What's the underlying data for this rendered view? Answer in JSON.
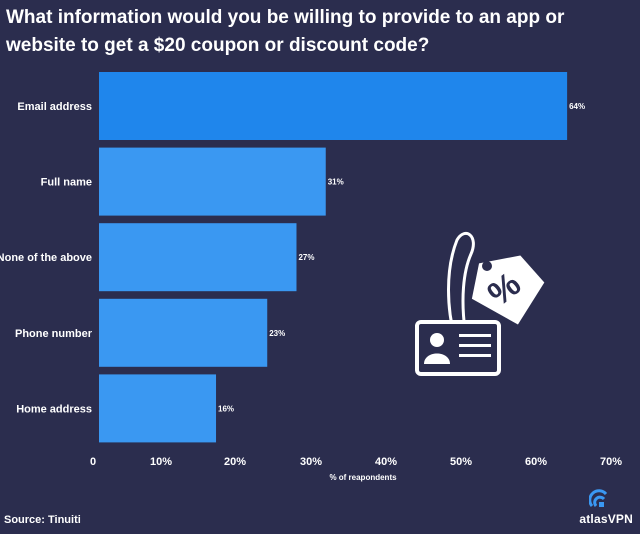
{
  "title": "What information would you be willing to provide to an app or website to get a $20 coupon or discount code?",
  "source": "Source: Tinuiti",
  "brand": {
    "name": "atlasVPN",
    "icon": "atlas-vpn-logo-icon"
  },
  "illustration": {
    "icons": [
      "discount-tag-icon",
      "id-card-icon"
    ]
  },
  "colors": {
    "background": "#2b2d4e",
    "bar_highlight": "#1f86ec",
    "bar": "#3a98f2",
    "text": "#ffffff"
  },
  "chart_data": {
    "type": "bar",
    "orientation": "horizontal",
    "categories": [
      "Email address",
      "Full name",
      "None of the above",
      "Phone number",
      "Home address"
    ],
    "values": [
      64,
      31,
      27,
      23,
      16
    ],
    "data_labels": [
      "64%",
      "31%",
      "27%",
      "23%",
      "16%"
    ],
    "xlabel": "% of reapondents",
    "xlim": [
      0,
      70
    ],
    "xticks": [
      "0",
      "10%",
      "20%",
      "30%",
      "40%",
      "50%",
      "60%",
      "70%"
    ],
    "grid": false,
    "legend": "none"
  }
}
